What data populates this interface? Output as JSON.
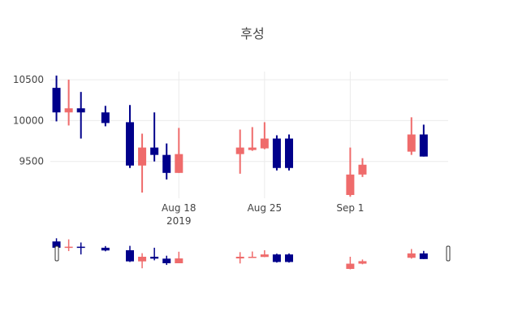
{
  "chart_data": {
    "type": "candlestick",
    "title": "후성",
    "xlabel": "",
    "ylabel": "",
    "ylim": [
      9050,
      10600
    ],
    "y_ticks": [
      9500,
      10000,
      10500
    ],
    "y_tick_labels": [
      "9500",
      "10000",
      "10500"
    ],
    "x_range": [
      "2019-08-08",
      "2019-09-09"
    ],
    "x_ticks": [
      {
        "date": "2019-08-18",
        "label": "Aug 18",
        "sublabel": "2019"
      },
      {
        "date": "2019-08-25",
        "label": "Aug 25",
        "sublabel": ""
      },
      {
        "date": "2019-09-01",
        "label": "Sep 1",
        "sublabel": ""
      }
    ],
    "grid": true,
    "legend": "none",
    "increasing_color": "#ef6b6b",
    "decreasing_color": "#00008b",
    "rangeslider": true,
    "candles": [
      {
        "date": "2019-08-08",
        "open": 10400,
        "high": 10550,
        "low": 9990,
        "close": 10100
      },
      {
        "date": "2019-08-09",
        "open": 10100,
        "high": 10500,
        "low": 9940,
        "close": 10150
      },
      {
        "date": "2019-08-10",
        "open": 10150,
        "high": 10350,
        "low": 9780,
        "close": 10100
      },
      {
        "date": "2019-08-12",
        "open": 10100,
        "high": 10180,
        "low": 9930,
        "close": 9970
      },
      {
        "date": "2019-08-14",
        "open": 9980,
        "high": 10190,
        "low": 9420,
        "close": 9450
      },
      {
        "date": "2019-08-15",
        "open": 9450,
        "high": 9840,
        "low": 9120,
        "close": 9670
      },
      {
        "date": "2019-08-16",
        "open": 9670,
        "high": 10100,
        "low": 9500,
        "close": 9580
      },
      {
        "date": "2019-08-17",
        "open": 9580,
        "high": 9720,
        "low": 9280,
        "close": 9360
      },
      {
        "date": "2019-08-18",
        "open": 9360,
        "high": 9910,
        "low": 9360,
        "close": 9590
      },
      {
        "date": "2019-08-23",
        "open": 9590,
        "high": 9890,
        "low": 9350,
        "close": 9670
      },
      {
        "date": "2019-08-24",
        "open": 9640,
        "high": 9920,
        "low": 9630,
        "close": 9670
      },
      {
        "date": "2019-08-25",
        "open": 9660,
        "high": 9980,
        "low": 9650,
        "close": 9780
      },
      {
        "date": "2019-08-26",
        "open": 9780,
        "high": 9820,
        "low": 9390,
        "close": 9420
      },
      {
        "date": "2019-08-27",
        "open": 9780,
        "high": 9830,
        "low": 9390,
        "close": 9420
      },
      {
        "date": "2019-09-01",
        "open": 9090,
        "high": 9670,
        "low": 9070,
        "close": 9340
      },
      {
        "date": "2019-09-02",
        "open": 9340,
        "high": 9540,
        "low": 9310,
        "close": 9460
      },
      {
        "date": "2019-09-06",
        "open": 9620,
        "high": 10040,
        "low": 9580,
        "close": 9830
      },
      {
        "date": "2019-09-07",
        "open": 9830,
        "high": 9950,
        "low": 9560,
        "close": 9560
      }
    ]
  }
}
